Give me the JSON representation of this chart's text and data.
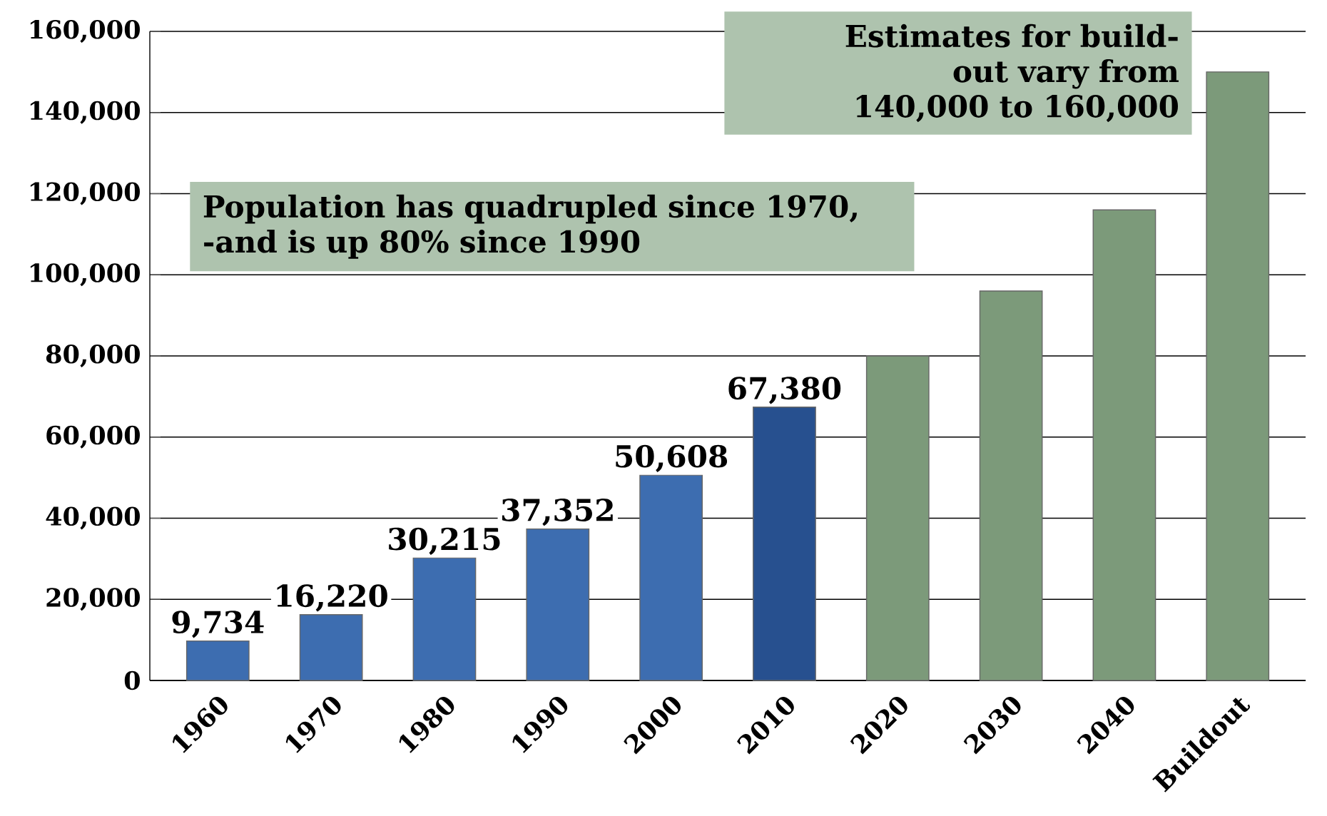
{
  "chart_data": {
    "type": "bar",
    "categories": [
      "1960",
      "1970",
      "1980",
      "1990",
      "2000",
      "2010",
      "2020",
      "2030",
      "2040",
      "Buildout"
    ],
    "values": [
      9734,
      16220,
      30215,
      37352,
      50608,
      67380,
      80000,
      96000,
      116000,
      150000
    ],
    "colors": [
      "#3d6db0",
      "#3d6db0",
      "#3d6db0",
      "#3d6db0",
      "#3d6db0",
      "#27508f",
      "#7c9a7a",
      "#7c9a7a",
      "#7c9a7a",
      "#7c9a7a"
    ],
    "value_labels": [
      "9,734",
      "16,220",
      "30,215",
      "37,352",
      "50,608",
      "67,380",
      null,
      null,
      null,
      null
    ],
    "ylim": [
      0,
      160000
    ],
    "yticks": [
      0,
      {
        "value": 20000,
        "label": "20,000"
      },
      {
        "value": 40000,
        "label": "40,000"
      },
      {
        "value": 60000,
        "label": "60,000"
      },
      {
        "value": 80000,
        "label": "80,000"
      },
      {
        "value": 100000,
        "label": "100,000"
      },
      {
        "value": 120000,
        "label": "120,000"
      },
      {
        "value": 140000,
        "label": "140,000"
      },
      {
        "value": 160000,
        "label": "160,000"
      }
    ],
    "grid": "y",
    "annotations": [
      "Population has quadrupled since 1970, -and is up 80% since 1990",
      "Estimates for build-out vary from 140,000 to 160,000"
    ]
  }
}
